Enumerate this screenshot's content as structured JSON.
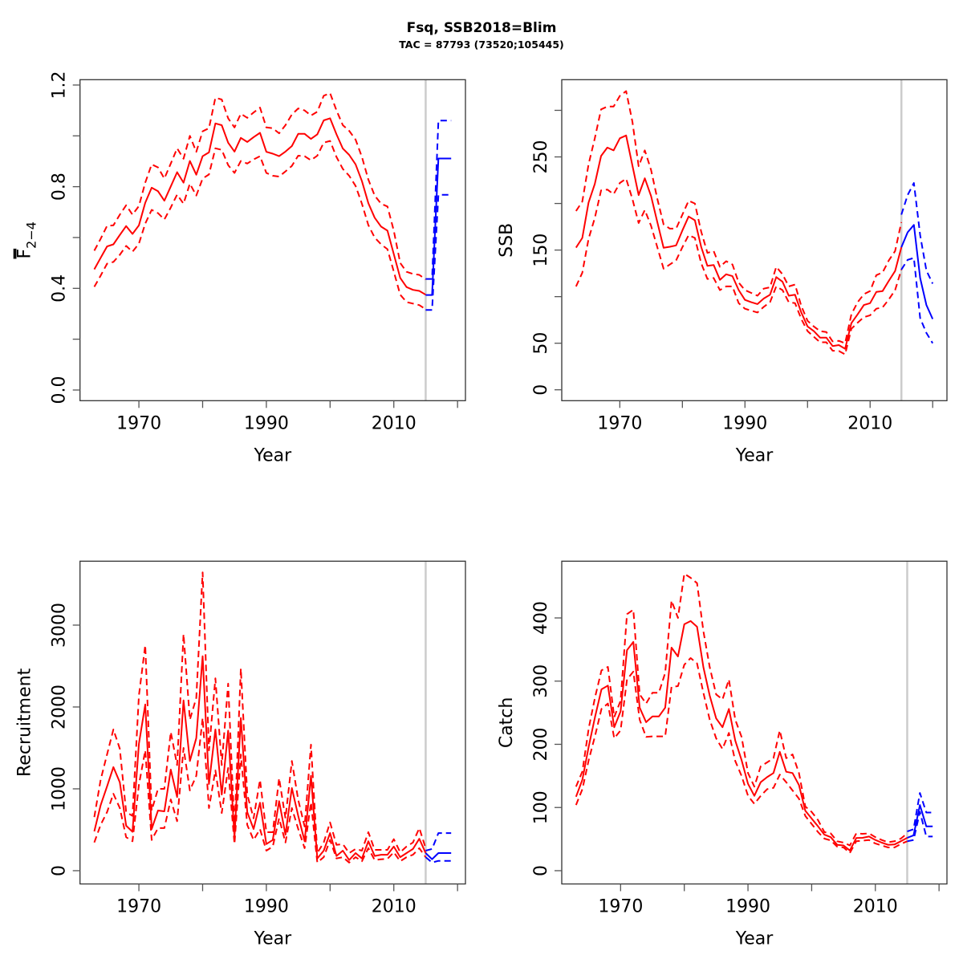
{
  "figure": {
    "title": "Fsq, SSB2018=Blim",
    "subtitle": "TAC = 87793 (73520;105445)"
  },
  "colors": {
    "historical": "#ff0000",
    "forecast": "#0000ff",
    "reference_line": "#cccccc",
    "axis": "#333333"
  },
  "chart_data": [
    {
      "id": "fbar",
      "type": "line",
      "title": "",
      "xlabel": "Year",
      "ylabel_main": "F",
      "ylabel_sub": "2−4",
      "xlim": [
        1963,
        2019
      ],
      "ylim": [
        -0.042,
        1.221
      ],
      "xticks": [
        1970,
        1980,
        1990,
        2000,
        2010,
        2020
      ],
      "xtick_labels": [
        "1970",
        "",
        "1990",
        "",
        "2010",
        ""
      ],
      "yticks": [
        0.0,
        0.2,
        0.4,
        0.6,
        0.8,
        1.0,
        1.2
      ],
      "ytick_labels": [
        "0.0",
        "",
        "0.4",
        "",
        "0.8",
        "",
        "1.2"
      ],
      "reference_year": 2015,
      "historical": {
        "x": [
          1963,
          1964,
          1965,
          1966,
          1967,
          1968,
          1969,
          1970,
          1971,
          1972,
          1973,
          1974,
          1975,
          1976,
          1977,
          1978,
          1979,
          1980,
          1981,
          1982,
          1983,
          1984,
          1985,
          1986,
          1987,
          1988,
          1989,
          1990,
          1991,
          1992,
          1993,
          1994,
          1995,
          1996,
          1997,
          1998,
          1999,
          2000,
          2001,
          2002,
          2003,
          2004,
          2005,
          2006,
          2007,
          2008,
          2009,
          2010,
          2011,
          2012,
          2013,
          2014,
          2015
        ],
        "estimate": [
          0.475,
          0.52,
          0.565,
          0.573,
          0.61,
          0.645,
          0.614,
          0.648,
          0.737,
          0.796,
          0.782,
          0.745,
          0.801,
          0.857,
          0.816,
          0.901,
          0.847,
          0.92,
          0.935,
          1.049,
          1.042,
          0.973,
          0.938,
          0.992,
          0.976,
          0.995,
          1.012,
          0.937,
          0.93,
          0.92,
          0.938,
          0.96,
          1.008,
          1.008,
          0.988,
          1.006,
          1.061,
          1.069,
          1.006,
          0.95,
          0.925,
          0.888,
          0.822,
          0.735,
          0.678,
          0.643,
          0.627,
          0.535,
          0.441,
          0.405,
          0.394,
          0.39,
          0.375
        ],
        "upper": [
          0.548,
          0.595,
          0.646,
          0.648,
          0.69,
          0.727,
          0.69,
          0.724,
          0.816,
          0.888,
          0.876,
          0.832,
          0.891,
          0.951,
          0.91,
          1.0,
          0.937,
          1.018,
          1.03,
          1.15,
          1.143,
          1.069,
          1.033,
          1.087,
          1.071,
          1.092,
          1.111,
          1.033,
          1.03,
          1.01,
          1.042,
          1.084,
          1.108,
          1.1,
          1.08,
          1.095,
          1.158,
          1.168,
          1.1,
          1.042,
          1.02,
          0.985,
          0.917,
          0.828,
          0.765,
          0.733,
          0.722,
          0.627,
          0.5,
          0.465,
          0.457,
          0.453,
          0.435
        ],
        "lower": [
          0.406,
          0.45,
          0.497,
          0.504,
          0.532,
          0.567,
          0.544,
          0.576,
          0.655,
          0.709,
          0.696,
          0.671,
          0.718,
          0.769,
          0.733,
          0.812,
          0.765,
          0.832,
          0.848,
          0.951,
          0.945,
          0.885,
          0.854,
          0.901,
          0.891,
          0.907,
          0.92,
          0.854,
          0.843,
          0.84,
          0.86,
          0.882,
          0.922,
          0.92,
          0.904,
          0.922,
          0.973,
          0.98,
          0.917,
          0.87,
          0.843,
          0.803,
          0.733,
          0.649,
          0.6,
          0.573,
          0.554,
          0.466,
          0.375,
          0.346,
          0.34,
          0.334,
          0.318
        ]
      },
      "forecast": {
        "x": [
          2015,
          2016,
          2017,
          2018,
          2019
        ],
        "estimate": [
          0.374,
          0.374,
          0.911,
          0.911,
          0.911
        ],
        "upper": [
          0.437,
          0.437,
          1.06,
          1.06,
          1.06
        ],
        "lower": [
          0.315,
          0.315,
          0.768,
          0.768,
          0.768
        ]
      }
    },
    {
      "id": "ssb",
      "type": "line",
      "title": "",
      "xlabel": "Year",
      "ylabel_main": "SSB",
      "ylabel_sub": "",
      "xlim": [
        1963,
        2020
      ],
      "ylim": [
        -11.7,
        332.9
      ],
      "xticks": [
        1970,
        1980,
        1990,
        2000,
        2010,
        2020
      ],
      "xtick_labels": [
        "1970",
        "",
        "1990",
        "",
        "2010",
        ""
      ],
      "yticks": [
        0,
        50,
        100,
        150,
        200,
        250,
        300
      ],
      "ytick_labels": [
        "0",
        "50",
        "",
        "150",
        "",
        "250",
        ""
      ],
      "reference_year": 2015,
      "historical": {
        "x": [
          1963,
          1964,
          1965,
          1966,
          1967,
          1968,
          1969,
          1970,
          1971,
          1972,
          1973,
          1974,
          1975,
          1976,
          1977,
          1978,
          1979,
          1980,
          1981,
          1982,
          1983,
          1984,
          1985,
          1986,
          1987,
          1988,
          1989,
          1990,
          1991,
          1992,
          1993,
          1994,
          1995,
          1996,
          1997,
          1998,
          1999,
          2000,
          2001,
          2002,
          2003,
          2004,
          2005,
          2006,
          2007,
          2008,
          2009,
          2010,
          2011,
          2012,
          2013,
          2014,
          2015
        ],
        "estimate": [
          152.6,
          163,
          201,
          221,
          251,
          260,
          257,
          270,
          273,
          241,
          209,
          227,
          208,
          180,
          152.5,
          153.5,
          155,
          171,
          186,
          182,
          153.5,
          133,
          134,
          118,
          124,
          122,
          107,
          96.5,
          94,
          92,
          98,
          102,
          121,
          116,
          101,
          102,
          83,
          68,
          63,
          56,
          56,
          47,
          48,
          44,
          71.5,
          81,
          91,
          93,
          105,
          106,
          117,
          127.5,
          153
        ],
        "upper": [
          192,
          202,
          242,
          270,
          301,
          304,
          304,
          315.5,
          320.7,
          288,
          240,
          257,
          236,
          205,
          177.6,
          173,
          173,
          188,
          203,
          200,
          170,
          147,
          149,
          132,
          138,
          134.5,
          115,
          107,
          104,
          101,
          108.6,
          110,
          132,
          124,
          111,
          113,
          90,
          74,
          68,
          63,
          62,
          52,
          52.6,
          50,
          81,
          94,
          102.6,
          106,
          123,
          126,
          139,
          149,
          180
        ],
        "lower": [
          111,
          125.6,
          162,
          184.5,
          214,
          215,
          210,
          222,
          226.7,
          205,
          179,
          193,
          176,
          153,
          130,
          134.5,
          139,
          153,
          166,
          163,
          136,
          119,
          120,
          107,
          111,
          111,
          93,
          87,
          85,
          83,
          89,
          94,
          111,
          107,
          94,
          93,
          76,
          63,
          57,
          51,
          51,
          42,
          41.6,
          38,
          65.5,
          72,
          78,
          80,
          87,
          88.5,
          97,
          107,
          129
        ]
      },
      "forecast": {
        "x": [
          2015,
          2016,
          2017,
          2018,
          2019,
          2020
        ],
        "estimate": [
          153,
          169,
          177,
          120,
          91,
          76
        ],
        "upper": [
          188,
          209,
          222,
          166,
          128,
          114
        ],
        "lower": [
          129,
          139.5,
          141.6,
          77,
          61,
          50
        ]
      }
    },
    {
      "id": "recruitment",
      "type": "line",
      "title": "",
      "xlabel": "Year",
      "ylabel_main": "Recruitment",
      "ylabel_sub": "",
      "xlim": [
        1963,
        2019
      ],
      "ylim": [
        -162,
        3781
      ],
      "xticks": [
        1970,
        1980,
        1990,
        2000,
        2010,
        2020
      ],
      "xtick_labels": [
        "1970",
        "",
        "1990",
        "",
        "2010",
        ""
      ],
      "yticks": [
        0,
        1000,
        2000,
        3000
      ],
      "ytick_labels": [
        "0",
        "1000",
        "2000",
        "3000"
      ],
      "reference_year": 2015,
      "historical": {
        "x": [
          1963,
          1964,
          1965,
          1966,
          1967,
          1968,
          1969,
          1970,
          1971,
          1972,
          1973,
          1974,
          1975,
          1976,
          1977,
          1978,
          1979,
          1980,
          1981,
          1982,
          1983,
          1984,
          1985,
          1986,
          1987,
          1988,
          1989,
          1990,
          1991,
          1992,
          1993,
          1994,
          1995,
          1996,
          1997,
          1998,
          1999,
          2000,
          2001,
          2002,
          2003,
          2004,
          2005,
          2006,
          2007,
          2008,
          2009,
          2010,
          2011,
          2012,
          2013,
          2014,
          2015
        ],
        "estimate": [
          480,
          800,
          1030,
          1265,
          1080,
          550,
          475,
          1550,
          2030,
          510,
          735,
          725,
          1235,
          900,
          2080,
          1340,
          1620,
          2620,
          1060,
          1725,
          930,
          1710,
          410,
          1865,
          715,
          510,
          830,
          325,
          375,
          850,
          440,
          1010,
          670,
          360,
          1160,
          150,
          245,
          460,
          180,
          245,
          130,
          215,
          150,
          360,
          180,
          195,
          195,
          295,
          165,
          215,
          265,
          390,
          215
        ],
        "upper": [
          655,
          1110,
          1420,
          1725,
          1490,
          715,
          670,
          2140,
          2755,
          735,
          1000,
          1000,
          1695,
          1290,
          2890,
          1845,
          2110,
          3645,
          1470,
          2350,
          1290,
          2285,
          510,
          2470,
          930,
          640,
          1110,
          470,
          470,
          1130,
          640,
          1340,
          865,
          540,
          1540,
          215,
          345,
          590,
          315,
          325,
          215,
          265,
          245,
          470,
          255,
          255,
          255,
          385,
          225,
          295,
          345,
          520,
          275
        ],
        "lower": [
          345,
          560,
          715,
          940,
          765,
          410,
          360,
          1050,
          1470,
          375,
          520,
          520,
          870,
          605,
          1500,
          980,
          1160,
          1865,
          765,
          1225,
          705,
          1255,
          325,
          1420,
          560,
          375,
          508,
          245,
          295,
          640,
          345,
          765,
          510,
          275,
          835,
          100,
          165,
          375,
          150,
          165,
          100,
          165,
          115,
          275,
          130,
          140,
          145,
          225,
          115,
          165,
          195,
          275,
          165
        ]
      },
      "forecast": {
        "x": [
          2015,
          2016,
          2017,
          2018,
          2019
        ],
        "estimate": [
          215,
          140,
          215,
          215,
          215
        ],
        "upper": [
          245,
          265,
          460,
          460,
          460
        ],
        "lower": [
          165,
          100,
          120,
          120,
          120
        ]
      }
    },
    {
      "id": "catch",
      "type": "line",
      "title": "",
      "xlabel": "Year",
      "ylabel_main": "Catch",
      "ylabel_sub": "",
      "xlim": [
        1963,
        2019
      ],
      "ylim": [
        -21,
        489.8
      ],
      "xticks": [
        1970,
        1980,
        1990,
        2000,
        2010,
        2020
      ],
      "xtick_labels": [
        "1970",
        "",
        "1990",
        "",
        "2010",
        ""
      ],
      "yticks": [
        0,
        100,
        200,
        300,
        400
      ],
      "ytick_labels": [
        "0",
        "100",
        "200",
        "300",
        "400"
      ],
      "reference_year": 2015,
      "historical": {
        "x": [
          1963,
          1964,
          1965,
          1966,
          1967,
          1968,
          1969,
          1970,
          1971,
          1972,
          1973,
          1974,
          1975,
          1976,
          1977,
          1978,
          1979,
          1980,
          1981,
          1982,
          1983,
          1984,
          1985,
          1986,
          1987,
          1988,
          1989,
          1990,
          1991,
          1992,
          1993,
          1994,
          1995,
          1996,
          1997,
          1998,
          1999,
          2000,
          2001,
          2002,
          2003,
          2004,
          2005,
          2006,
          2007,
          2008,
          2009,
          2010,
          2011,
          2012,
          2013,
          2014,
          2015
        ],
        "estimate": [
          117,
          144,
          197,
          244,
          287,
          293,
          227,
          252,
          349,
          362,
          258,
          235,
          244,
          244,
          258,
          353,
          339,
          390,
          395,
          386,
          322,
          277,
          241,
          227,
          256,
          206,
          175,
          137.5,
          118.5,
          140,
          148,
          154.5,
          188,
          156.5,
          154.5,
          135.5,
          95,
          82.5,
          70,
          57,
          53,
          41,
          40,
          32,
          51.6,
          52,
          54,
          48.6,
          44.4,
          41,
          41.5,
          46.6,
          52
        ],
        "upper": [
          133,
          157,
          226,
          275,
          317,
          322.5,
          243,
          269,
          406,
          413,
          279,
          264.5,
          281.5,
          281.5,
          313,
          427.5,
          400,
          470,
          463.5,
          455,
          379,
          322,
          279,
          271,
          302.6,
          239,
          211.7,
          154.5,
          133,
          165,
          171.4,
          178,
          222,
          178,
          184,
          154.5,
          101.6,
          93,
          80,
          61,
          59,
          46.6,
          44.4,
          40,
          59,
          58.4,
          59,
          53,
          48.6,
          45,
          46.6,
          50.8,
          59
        ],
        "lower": [
          104,
          129,
          175.6,
          214,
          256,
          264.5,
          209.5,
          222,
          302.6,
          315,
          239,
          211.7,
          212.5,
          212.5,
          212.5,
          291,
          292,
          326,
          336.5,
          328,
          281.5,
          239,
          209.5,
          192.6,
          218,
          173.6,
          150,
          118.5,
          105.8,
          118.5,
          129,
          131,
          152,
          140,
          127,
          114,
          86.7,
          74,
          61,
          50.8,
          48,
          38,
          36.8,
          28,
          46.6,
          47.6,
          48.6,
          43,
          40,
          36.8,
          36.8,
          42.3,
          46.6
        ]
      },
      "forecast": {
        "x": [
          2015,
          2016,
          2017,
          2018,
          2019
        ],
        "estimate": [
          52,
          56,
          104,
          70,
          70
        ],
        "upper": [
          62,
          65.6,
          123,
          92,
          92
        ],
        "lower": [
          46.6,
          48.6,
          93,
          54,
          54
        ]
      }
    }
  ]
}
